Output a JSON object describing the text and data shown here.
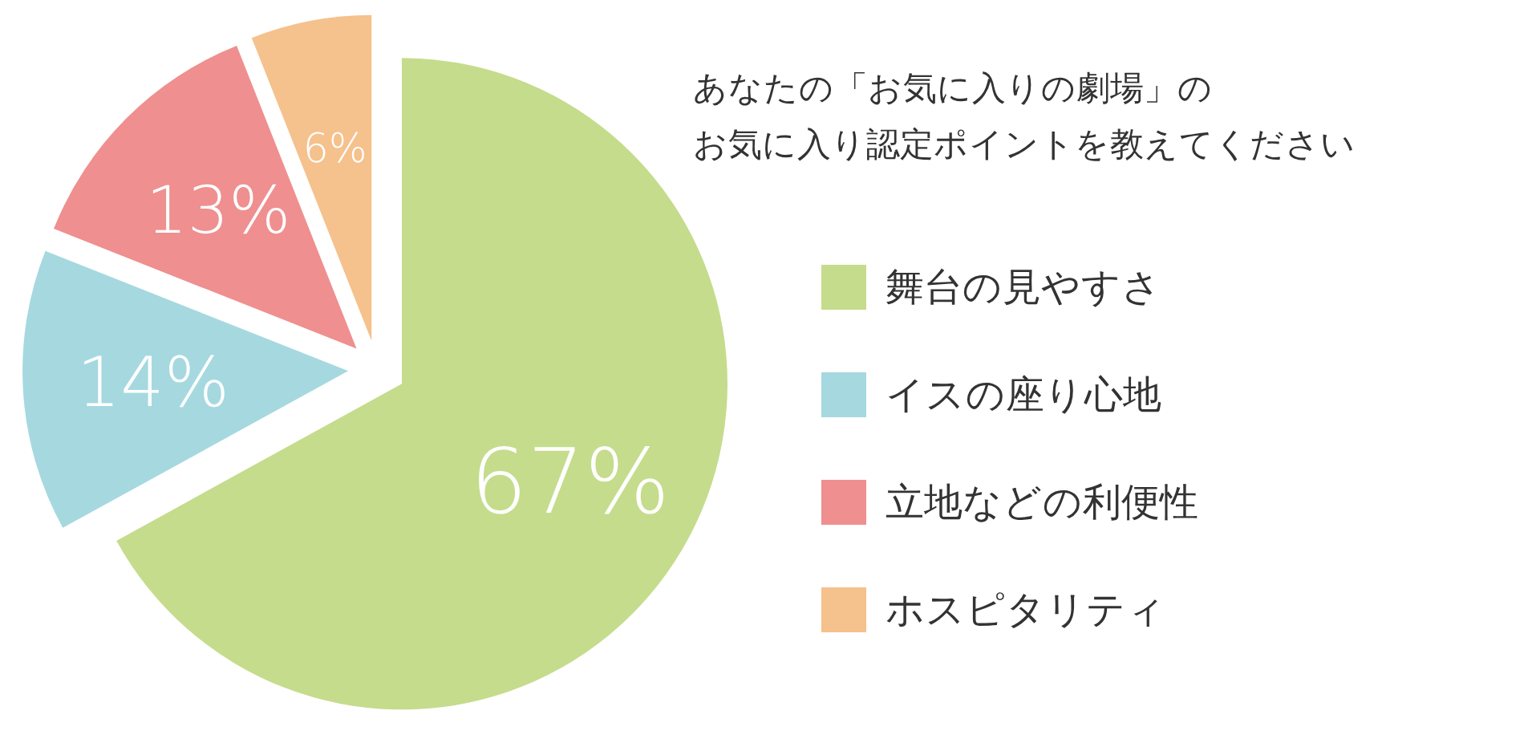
{
  "chart_data": {
    "type": "pie",
    "title": "あなたの「お気に入りの劇場」のお気に入り認定ポイントを教えてください",
    "categories": [
      "舞台の見やすさ",
      "イスの座り心地",
      "立地などの利便性",
      "ホスピタリティ"
    ],
    "values": [
      67,
      14,
      13,
      6
    ],
    "colors": [
      "#c5dc8c",
      "#a6d8e0",
      "#ef8f8f",
      "#f5c18c"
    ],
    "value_labels": [
      "67%",
      "14%",
      "13%",
      "6%"
    ],
    "legend": "right"
  }
}
